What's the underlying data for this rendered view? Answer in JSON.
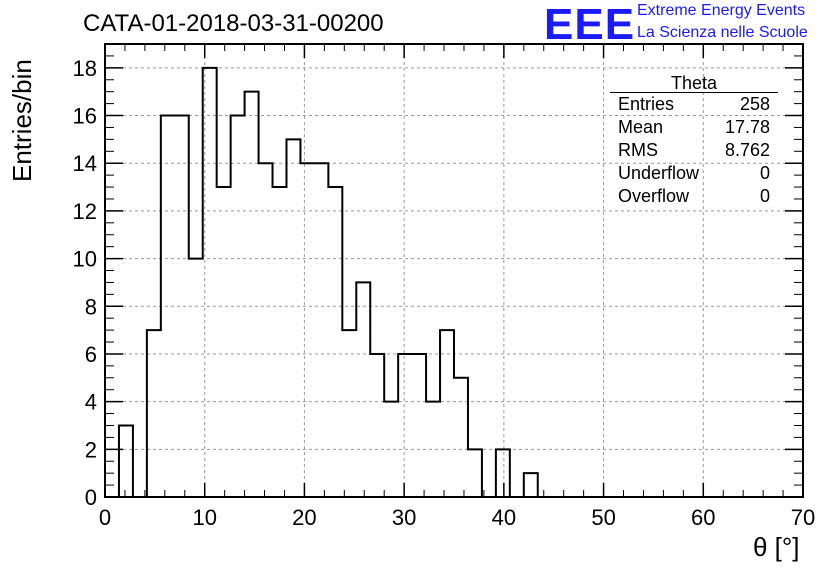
{
  "title": "CATA-01-2018-03-31-00200",
  "logo": {
    "mark": "EEE",
    "line1": "Extreme Energy Events",
    "line2": "La Scienza nelle Scuole",
    "color": "#1a1aff"
  },
  "stats": {
    "name": "Theta",
    "rows": [
      {
        "key": "Entries",
        "value": "258"
      },
      {
        "key": "Mean",
        "value": "17.78"
      },
      {
        "key": "RMS",
        "value": "8.762"
      },
      {
        "key": "Underflow",
        "value": "0"
      },
      {
        "key": "Overflow",
        "value": "0"
      }
    ]
  },
  "chart_data": {
    "type": "bar",
    "style": "step-histogram",
    "title": "CATA-01-2018-03-31-00200",
    "xlabel": "θ [°]",
    "ylabel": "Entries/bin",
    "xlim": [
      0,
      70
    ],
    "ylim": [
      0,
      19
    ],
    "bin_width": 1.4,
    "x": [
      0.7,
      2.1,
      3.5,
      4.9,
      6.3,
      7.7,
      9.1,
      10.5,
      11.9,
      13.3,
      14.7,
      16.1,
      17.5,
      18.9,
      20.3,
      21.7,
      23.1,
      24.5,
      25.9,
      27.3,
      28.7,
      30.1,
      31.5,
      32.9,
      34.3,
      35.7,
      37.1,
      38.5,
      39.9,
      41.3,
      42.7,
      44.1
    ],
    "values": [
      0,
      3,
      0,
      7,
      16,
      16,
      10,
      18,
      13,
      16,
      17,
      14,
      13,
      15,
      14,
      14,
      13,
      7,
      9,
      6,
      4,
      6,
      6,
      4,
      7,
      5,
      2,
      0,
      2,
      0,
      1,
      0
    ],
    "xticks": [
      "0",
      "10",
      "20",
      "30",
      "40",
      "50",
      "60",
      "70"
    ],
    "yticks": [
      "0",
      "2",
      "4",
      "6",
      "8",
      "10",
      "12",
      "14",
      "16",
      "18"
    ],
    "grid": true,
    "line_color": "#000000"
  }
}
